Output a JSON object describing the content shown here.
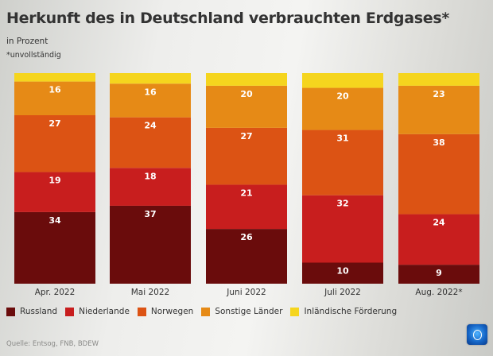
{
  "header": {
    "title": "Herkunft des in Deutschland verbrauchten Erdgases*",
    "subtitle": "in Prozent",
    "note": "*unvollständig"
  },
  "footer": {
    "source": "Quelle: Entsog, FNB, BDEW",
    "logo": "tagesschau-logo-icon"
  },
  "chart_data": {
    "type": "bar",
    "stacked": true,
    "title": "Herkunft des in Deutschland verbrauchten Erdgases*",
    "subtitle": "in Prozent",
    "xlabel": "",
    "ylabel": "in Prozent",
    "ylim": [
      0,
      100
    ],
    "grid": false,
    "legend_position": "bottom",
    "categories": [
      "Apr. 2022",
      "Mai 2022",
      "Juni 2022",
      "Juli 2022",
      "Aug. 2022*"
    ],
    "series": [
      {
        "name": "Russland",
        "color": "#6a0c0c",
        "values": [
          34,
          37,
          26,
          10,
          9
        ],
        "labeled": true
      },
      {
        "name": "Niederlande",
        "color": "#c81e1e",
        "values": [
          19,
          18,
          21,
          32,
          24
        ],
        "labeled": true
      },
      {
        "name": "Norwegen",
        "color": "#dc5314",
        "values": [
          27,
          24,
          27,
          31,
          38
        ],
        "labeled": true
      },
      {
        "name": "Sonstige Länder",
        "color": "#e68a16",
        "values": [
          16,
          16,
          20,
          20,
          23
        ],
        "labeled": true
      },
      {
        "name": "Inländische Förderung",
        "color": "#f5d51e",
        "values": [
          4,
          5,
          6,
          7,
          6
        ],
        "labeled": false
      }
    ]
  }
}
